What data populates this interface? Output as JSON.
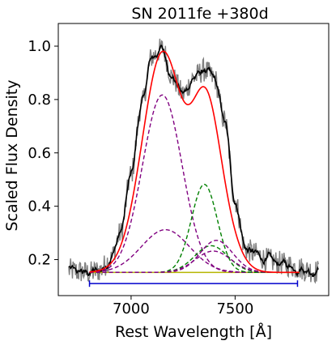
{
  "chart_data": {
    "type": "line",
    "title": "SN 2011fe  +380d",
    "xlabel": "Rest Wavelength [Å]",
    "ylabel": "Scaled Flux Density",
    "xlim": [
      6650,
      7950
    ],
    "ylim": [
      0.065,
      1.085
    ],
    "xticks": [
      7000,
      7500
    ],
    "yticks": [
      0.2,
      0.4,
      0.6,
      0.8,
      1.0
    ],
    "xtick_labels": [
      "7000",
      "7500"
    ],
    "ytick_labels": [
      "0.2",
      "0.4",
      "0.6",
      "0.8",
      "1.0"
    ],
    "grid": false,
    "legend": "none",
    "continuum": {
      "level": 0.152,
      "x_range": [
        6800,
        7810
      ],
      "color": "#b5b500"
    },
    "fit_window": {
      "y": 0.11,
      "x_range": [
        6800,
        7800
      ],
      "color": "#0000cc"
    },
    "total_fit": {
      "color": "#ff0000"
    },
    "components": [
      {
        "center": 7150,
        "amplitude": 0.665,
        "sigma": 95,
        "color": "#800080",
        "dash": true
      },
      {
        "center": 7165,
        "amplitude": 0.16,
        "sigma": 115,
        "color": "#800080",
        "dash": true
      },
      {
        "center": 7352,
        "amplitude": 0.33,
        "sigma": 62,
        "color": "#008000",
        "dash": true
      },
      {
        "center": 7385,
        "amplitude": 0.1,
        "sigma": 80,
        "color": "#008000",
        "dash": true
      },
      {
        "center": 7410,
        "amplitude": 0.12,
        "sigma": 78,
        "color": "#800080",
        "dash": true
      },
      {
        "center": 7395,
        "amplitude": 0.08,
        "sigma": 85,
        "color": "#800080",
        "dash": true
      }
    ],
    "observed": {
      "color_raw": "#808080",
      "color_smooth": "#000000",
      "x": [
        6700,
        6750,
        6800,
        6850,
        6900,
        6950,
        7000,
        7050,
        7100,
        7150,
        7200,
        7250,
        7300,
        7350,
        7400,
        7450,
        7500,
        7550,
        7600,
        7650,
        7700,
        7750,
        7800,
        7850,
        7900
      ],
      "y": [
        0.16,
        0.155,
        0.15,
        0.16,
        0.2,
        0.3,
        0.52,
        0.78,
        0.96,
        0.99,
        0.88,
        0.82,
        0.88,
        0.91,
        0.88,
        0.72,
        0.42,
        0.24,
        0.22,
        0.2,
        0.19,
        0.18,
        0.17,
        0.16,
        0.155
      ]
    }
  }
}
